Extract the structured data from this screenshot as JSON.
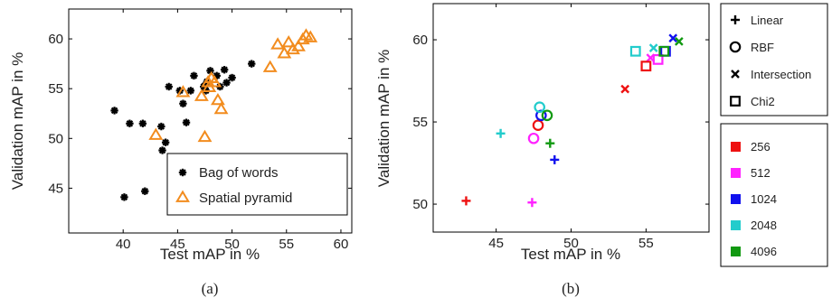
{
  "chart_data": [
    {
      "type": "scatter",
      "caption": "(a)",
      "xlabel": "Test mAP in %",
      "ylabel": "Validation mAP in %",
      "xlim": [
        35,
        61
      ],
      "ylim": [
        40.5,
        63
      ],
      "xticks": [
        40,
        45,
        50,
        55,
        60
      ],
      "yticks": [
        45,
        50,
        55,
        60
      ],
      "legend_position": "bottom-right",
      "series": [
        {
          "name": "Bag of words",
          "marker": "asterisk",
          "color": "#000000",
          "points": [
            [
              39.2,
              52.8
            ],
            [
              40.1,
              44.1
            ],
            [
              40.6,
              51.5
            ],
            [
              41.8,
              51.5
            ],
            [
              42.0,
              44.7
            ],
            [
              43.5,
              51.2
            ],
            [
              43.6,
              48.8
            ],
            [
              43.9,
              49.6
            ],
            [
              44.2,
              55.2
            ],
            [
              45.2,
              54.8
            ],
            [
              45.5,
              53.5
            ],
            [
              45.8,
              51.6
            ],
            [
              46.2,
              54.8
            ],
            [
              46.5,
              56.3
            ],
            [
              47.4,
              55.2
            ],
            [
              47.5,
              55.3
            ],
            [
              47.7,
              55.7
            ],
            [
              47.6,
              54.8
            ],
            [
              48.0,
              56.8
            ],
            [
              48.6,
              56.3
            ],
            [
              48.9,
              55.2
            ],
            [
              49.3,
              56.9
            ],
            [
              49.5,
              55.6
            ],
            [
              50.0,
              56.1
            ],
            [
              51.8,
              57.5
            ]
          ]
        },
        {
          "name": "Spatial pyramid",
          "marker": "triangle",
          "color": "#f28c1e",
          "points": [
            [
              43.0,
              50.3
            ],
            [
              45.5,
              54.6
            ],
            [
              47.2,
              54.2
            ],
            [
              47.5,
              50.1
            ],
            [
              47.8,
              55.6
            ],
            [
              47.9,
              55.1
            ],
            [
              48.1,
              56.0
            ],
            [
              48.4,
              55.6
            ],
            [
              48.7,
              53.8
            ],
            [
              49.0,
              52.9
            ],
            [
              53.5,
              57.1
            ],
            [
              54.2,
              59.4
            ],
            [
              54.8,
              58.5
            ],
            [
              55.2,
              59.6
            ],
            [
              55.6,
              58.9
            ],
            [
              56.1,
              59.2
            ],
            [
              56.5,
              59.9
            ],
            [
              56.8,
              60.3
            ],
            [
              57.2,
              60.1
            ]
          ]
        }
      ]
    },
    {
      "type": "scatter",
      "caption": "(b)",
      "xlabel": "Test mAP in %",
      "ylabel": "Validation mAP in %",
      "xlim": [
        40.8,
        59.2
      ],
      "ylim": [
        48.3,
        62.2
      ],
      "xticks": [
        45,
        50,
        55
      ],
      "yticks": [
        50,
        55,
        60
      ],
      "kernel_legend": [
        {
          "label": "Linear",
          "marker": "plus"
        },
        {
          "label": "RBF",
          "marker": "circle"
        },
        {
          "label": "Intersection",
          "marker": "cross"
        },
        {
          "label": "Chi2",
          "marker": "square"
        }
      ],
      "size_legend": [
        {
          "label": "256",
          "color": "#ee1111"
        },
        {
          "label": "512",
          "color": "#ff22ff"
        },
        {
          "label": "1024",
          "color": "#1111ee"
        },
        {
          "label": "2048",
          "color": "#22cccc"
        },
        {
          "label": "4096",
          "color": "#119911"
        }
      ],
      "points": [
        {
          "x": 43.0,
          "y": 50.2,
          "marker": "plus",
          "color": "#ee1111"
        },
        {
          "x": 47.4,
          "y": 50.1,
          "marker": "plus",
          "color": "#ff22ff"
        },
        {
          "x": 48.9,
          "y": 52.7,
          "marker": "plus",
          "color": "#1111ee"
        },
        {
          "x": 45.3,
          "y": 54.3,
          "marker": "plus",
          "color": "#22cccc"
        },
        {
          "x": 48.6,
          "y": 53.7,
          "marker": "plus",
          "color": "#119911"
        },
        {
          "x": 47.8,
          "y": 54.8,
          "marker": "circle",
          "color": "#ee1111"
        },
        {
          "x": 47.5,
          "y": 54.0,
          "marker": "circle",
          "color": "#ff22ff"
        },
        {
          "x": 48.0,
          "y": 55.4,
          "marker": "circle",
          "color": "#1111ee"
        },
        {
          "x": 47.9,
          "y": 55.9,
          "marker": "circle",
          "color": "#22cccc"
        },
        {
          "x": 48.4,
          "y": 55.4,
          "marker": "circle",
          "color": "#119911"
        },
        {
          "x": 53.6,
          "y": 57.0,
          "marker": "cross",
          "color": "#ee1111"
        },
        {
          "x": 55.3,
          "y": 58.9,
          "marker": "cross",
          "color": "#ff22ff"
        },
        {
          "x": 56.8,
          "y": 60.1,
          "marker": "cross",
          "color": "#1111ee"
        },
        {
          "x": 55.5,
          "y": 59.5,
          "marker": "cross",
          "color": "#22cccc"
        },
        {
          "x": 57.2,
          "y": 59.9,
          "marker": "cross",
          "color": "#119911"
        },
        {
          "x": 55.0,
          "y": 58.4,
          "marker": "square",
          "color": "#ee1111"
        },
        {
          "x": 55.8,
          "y": 58.8,
          "marker": "square",
          "color": "#ff22ff"
        },
        {
          "x": 56.3,
          "y": 59.3,
          "marker": "square",
          "color": "#1111ee"
        },
        {
          "x": 54.3,
          "y": 59.3,
          "marker": "square",
          "color": "#22cccc"
        },
        {
          "x": 56.2,
          "y": 59.3,
          "marker": "square",
          "color": "#119911"
        }
      ]
    }
  ]
}
